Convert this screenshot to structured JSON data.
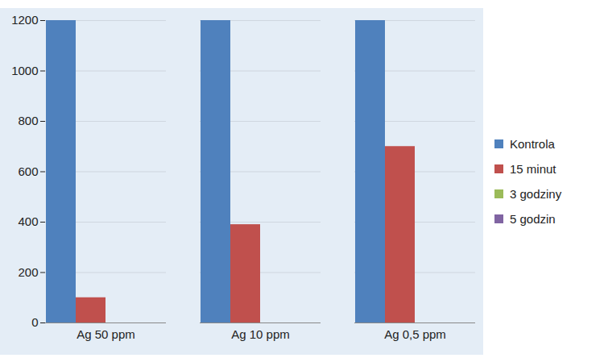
{
  "chart_data": {
    "type": "bar",
    "categories": [
      "Ag 50 ppm",
      "Ag 10 ppm",
      "Ag 0,5 ppm"
    ],
    "series": [
      {
        "name": "Kontrola",
        "color": "#4f81bd",
        "values": [
          1200,
          1200,
          1200
        ]
      },
      {
        "name": "15 minut",
        "color": "#c0504d",
        "values": [
          100,
          390,
          700
        ]
      },
      {
        "name": "3 godziny",
        "color": "#9bbb59",
        "values": [
          0,
          0,
          0
        ]
      },
      {
        "name": "5 godzin",
        "color": "#8064a2",
        "values": [
          0,
          0,
          0
        ]
      }
    ],
    "ylim": [
      0,
      1200
    ],
    "yticks": [
      0,
      200,
      400,
      600,
      800,
      1000,
      1200
    ],
    "grid": true,
    "legend": "right"
  }
}
